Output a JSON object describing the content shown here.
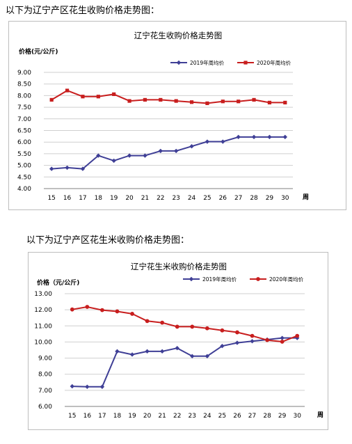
{
  "headings": {
    "section1": "以下为辽宁产区花生收购价格走势图：",
    "section2": "以下为辽宁产区花生米收购价格走势图："
  },
  "colors": {
    "series_2019": "#3f3f96",
    "series_2020": "#c81e1e",
    "grid": "#cfcfcf",
    "axis": "#7f7f7f"
  },
  "chart_data": [
    {
      "type": "line",
      "title": "辽宁花生收购价格走势图",
      "ylabel": "价格(元/公斤)",
      "xlabel": "周",
      "categories": [
        "15",
        "16",
        "17",
        "18",
        "19",
        "20",
        "21",
        "22",
        "23",
        "24",
        "25",
        "26",
        "27",
        "28",
        "29",
        "30"
      ],
      "ylim": [
        4.0,
        9.0
      ],
      "yticks": [
        "4.00",
        "4.50",
        "5.00",
        "5.50",
        "6.00",
        "6.50",
        "7.00",
        "7.50",
        "8.00",
        "8.50",
        "9.00"
      ],
      "grid": true,
      "legend": "top",
      "series": [
        {
          "name": "2019年周均价",
          "marker": "diamond",
          "values": [
            4.85,
            4.9,
            4.85,
            5.42,
            5.2,
            5.42,
            5.42,
            5.62,
            5.62,
            5.82,
            6.02,
            6.02,
            6.22,
            6.22,
            6.22,
            6.22
          ]
        },
        {
          "name": "2020年周均价",
          "marker": "square",
          "values": [
            7.82,
            8.22,
            7.96,
            7.96,
            8.06,
            7.77,
            7.82,
            7.82,
            7.77,
            7.72,
            7.67,
            7.75,
            7.75,
            7.82,
            7.7,
            7.7
          ]
        }
      ]
    },
    {
      "type": "line",
      "title": "辽宁花生米收购价格走势图",
      "ylabel": "价格（元/公斤)",
      "xlabel": "周",
      "categories": [
        "15",
        "16",
        "17",
        "18",
        "19",
        "20",
        "21",
        "22",
        "23",
        "24",
        "25",
        "26",
        "27",
        "28",
        "29",
        "30"
      ],
      "ylim": [
        6.0,
        13.0
      ],
      "yticks": [
        "6.00",
        "7.00",
        "8.00",
        "9.00",
        "10.00",
        "11.00",
        "12.00",
        "13.00"
      ],
      "grid": true,
      "legend": "top",
      "series": [
        {
          "name": "2019年周均价",
          "marker": "diamond",
          "values": [
            7.25,
            7.22,
            7.22,
            9.42,
            9.22,
            9.42,
            9.42,
            9.62,
            9.12,
            9.12,
            9.75,
            9.95,
            10.05,
            10.15,
            10.25,
            10.25
          ]
        },
        {
          "name": "2020年周均价",
          "marker": "circle",
          "values": [
            12.02,
            12.18,
            11.98,
            11.9,
            11.75,
            11.3,
            11.2,
            10.95,
            10.95,
            10.85,
            10.72,
            10.6,
            10.38,
            10.12,
            10.02,
            10.38
          ]
        }
      ]
    }
  ]
}
